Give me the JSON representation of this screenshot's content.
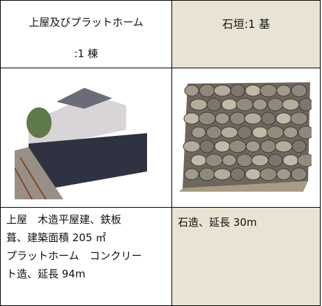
{
  "table": {
    "header": {
      "left": [
        "上屋及びプラットホーム",
        ":1 棟"
      ],
      "right": "石垣:1 基"
    },
    "description": {
      "left": [
        "上屋　木造平屋建、鉄板",
        "葺、建築面積 205 ㎡",
        "プラットホーム　コンクリー",
        "ト造、延長 94m"
      ],
      "right": "石造、延長 30m"
    }
  }
}
